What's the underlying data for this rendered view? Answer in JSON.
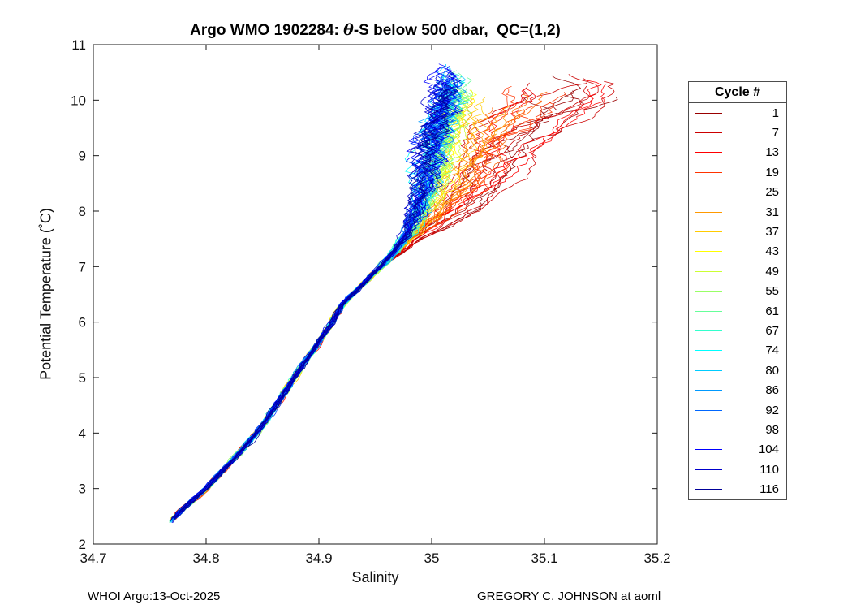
{
  "chart_data": {
    "type": "line",
    "title": "Argo WMO 1902284: θ-S below 500 dbar,  QC=(1,2)",
    "title_parts": {
      "prefix": "Argo WMO 1902284: ",
      "theta": "θ",
      "suffix": "-S below 500 dbar,  QC=(1,2)"
    },
    "xlabel": "Salinity",
    "ylabel": "Potential Temperature (˚C)",
    "xlim": [
      34.7,
      35.2
    ],
    "ylim": [
      2,
      11
    ],
    "xtick_values": [
      34.7,
      34.8,
      34.9,
      35.0,
      35.1,
      35.2
    ],
    "xtick_labels": [
      "34.7",
      "34.8",
      "34.9",
      "35",
      "35.1",
      "35.2"
    ],
    "ytick_values": [
      2,
      3,
      4,
      5,
      6,
      7,
      8,
      9,
      10,
      11
    ],
    "ytick_labels": [
      "2",
      "3",
      "4",
      "5",
      "6",
      "7",
      "8",
      "9",
      "10",
      "11"
    ],
    "grid": false,
    "legend_title": "Cycle #",
    "legend_position": "right-outside",
    "colormap": "jet-reversed (early cycles dark red, late cycles dark navy)",
    "series_kind": "Argo float potential temperature vs salinity profiles below 500 dbar",
    "backbone_theta_salinity": [
      [
        2.38,
        34.768
      ],
      [
        2.6,
        34.778
      ],
      [
        3.0,
        34.8
      ],
      [
        3.5,
        34.823
      ],
      [
        4.0,
        34.845
      ],
      [
        4.5,
        34.862
      ],
      [
        5.0,
        34.878
      ],
      [
        5.5,
        34.895
      ],
      [
        6.0,
        34.912
      ],
      [
        6.3,
        34.92
      ],
      [
        6.7,
        34.94
      ],
      [
        7.0,
        34.955
      ],
      [
        7.3,
        34.968
      ],
      [
        7.6,
        34.978
      ],
      [
        8.0,
        34.985
      ],
      [
        8.5,
        34.992
      ],
      [
        9.0,
        34.996
      ],
      [
        9.5,
        35.0
      ],
      [
        10.0,
        35.008
      ],
      [
        10.6,
        35.01
      ]
    ],
    "early_cycle_max_extra_salinity": [
      [
        7.0,
        0.0
      ],
      [
        7.5,
        0.012
      ],
      [
        8.0,
        0.055
      ],
      [
        8.5,
        0.08
      ],
      [
        9.0,
        0.1
      ],
      [
        9.5,
        0.115
      ],
      [
        10.0,
        0.145
      ],
      [
        10.3,
        0.15
      ],
      [
        10.6,
        0.1
      ]
    ],
    "cycles": [
      {
        "label": "1",
        "color": "#990000",
        "spread": 1.0,
        "top": 10.25
      },
      {
        "label": "7",
        "color": "#cc0000",
        "spread": 0.95,
        "top": 10.45
      },
      {
        "label": "13",
        "color": "#ff0000",
        "spread": 0.9,
        "top": 10.3
      },
      {
        "label": "19",
        "color": "#ff3300",
        "spread": 0.8,
        "top": 10.15
      },
      {
        "label": "25",
        "color": "#ff6600",
        "spread": 0.6,
        "top": 9.95
      },
      {
        "label": "31",
        "color": "#ff9900",
        "spread": 0.45,
        "top": 9.85
      },
      {
        "label": "37",
        "color": "#ffcc00",
        "spread": 0.3,
        "top": 9.9
      },
      {
        "label": "43",
        "color": "#ffff00",
        "spread": 0.2,
        "top": 10.0
      },
      {
        "label": "49",
        "color": "#ccff33",
        "spread": 0.18,
        "top": 10.1
      },
      {
        "label": "55",
        "color": "#99ff66",
        "spread": 0.15,
        "top": 10.2
      },
      {
        "label": "61",
        "color": "#66ff99",
        "spread": 0.14,
        "top": 10.35
      },
      {
        "label": "67",
        "color": "#33ffcc",
        "spread": 0.12,
        "top": 10.3
      },
      {
        "label": "74",
        "color": "#00ffff",
        "spread": 0.06,
        "top": 10.4
      },
      {
        "label": "80",
        "color": "#00ccff",
        "spread": 0.05,
        "top": 10.45
      },
      {
        "label": "86",
        "color": "#0099ff",
        "spread": 0.05,
        "top": 10.3
      },
      {
        "label": "92",
        "color": "#0066ff",
        "spread": 0.04,
        "top": 10.2
      },
      {
        "label": "98",
        "color": "#0033ff",
        "spread": 0.03,
        "top": 10.4
      },
      {
        "label": "104",
        "color": "#0000ff",
        "spread": 0.03,
        "top": 10.5
      },
      {
        "label": "110",
        "color": "#0000cc",
        "spread": 0.02,
        "top": 10.5
      },
      {
        "label": "116",
        "color": "#000099",
        "spread": 0.02,
        "top": 10.35
      }
    ]
  },
  "footer": {
    "left": "WHOI Argo:13-Oct-2025",
    "right": "GREGORY C. JOHNSON at aoml"
  }
}
